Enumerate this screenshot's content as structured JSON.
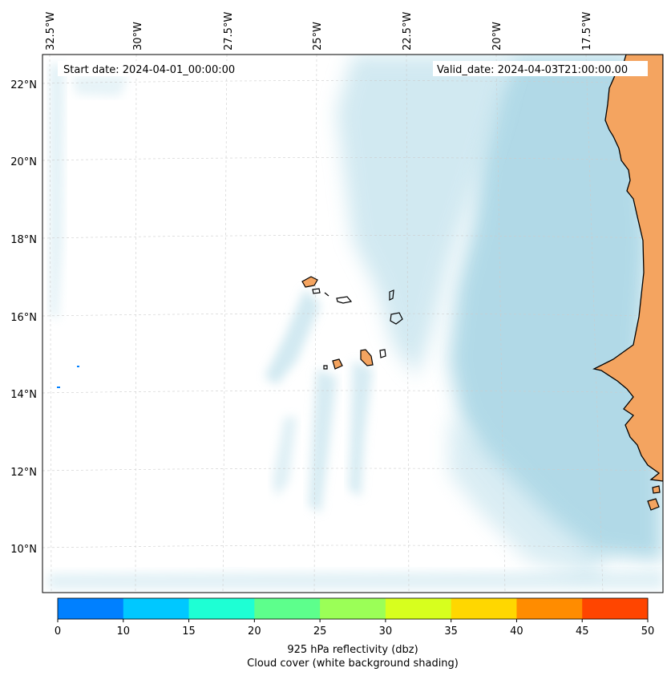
{
  "header": {
    "start_date": "Start date: 2024-04-01_00:00:00",
    "valid_date": "Valid_date: 2024-04-03T21:00:00.00"
  },
  "lon_labels": [
    "32.5°W",
    "30°W",
    "27.5°W",
    "25°W",
    "22.5°W",
    "20°W",
    "17.5°W"
  ],
  "lat_labels": [
    "22°N",
    "20°N",
    "18°N",
    "16°N",
    "14°N",
    "12°N",
    "10°N"
  ],
  "colors": {
    "land": "#f4a460",
    "cloud": "#add8e6",
    "coastline": "#000000",
    "gridline": "#cccccc"
  },
  "colorbar": {
    "ticks": [
      "0",
      "10",
      "15",
      "20",
      "25",
      "30",
      "35",
      "40",
      "45",
      "50"
    ],
    "colors": [
      "#0080ff",
      "#00c8ff",
      "#1effd4",
      "#5dff8c",
      "#9bff57",
      "#d7ff1e",
      "#ffd700",
      "#ff8c00",
      "#ff4500"
    ],
    "label": "925 hPa reflectivity (dbz)",
    "sublabel": "Cloud cover (white background shading)"
  }
}
